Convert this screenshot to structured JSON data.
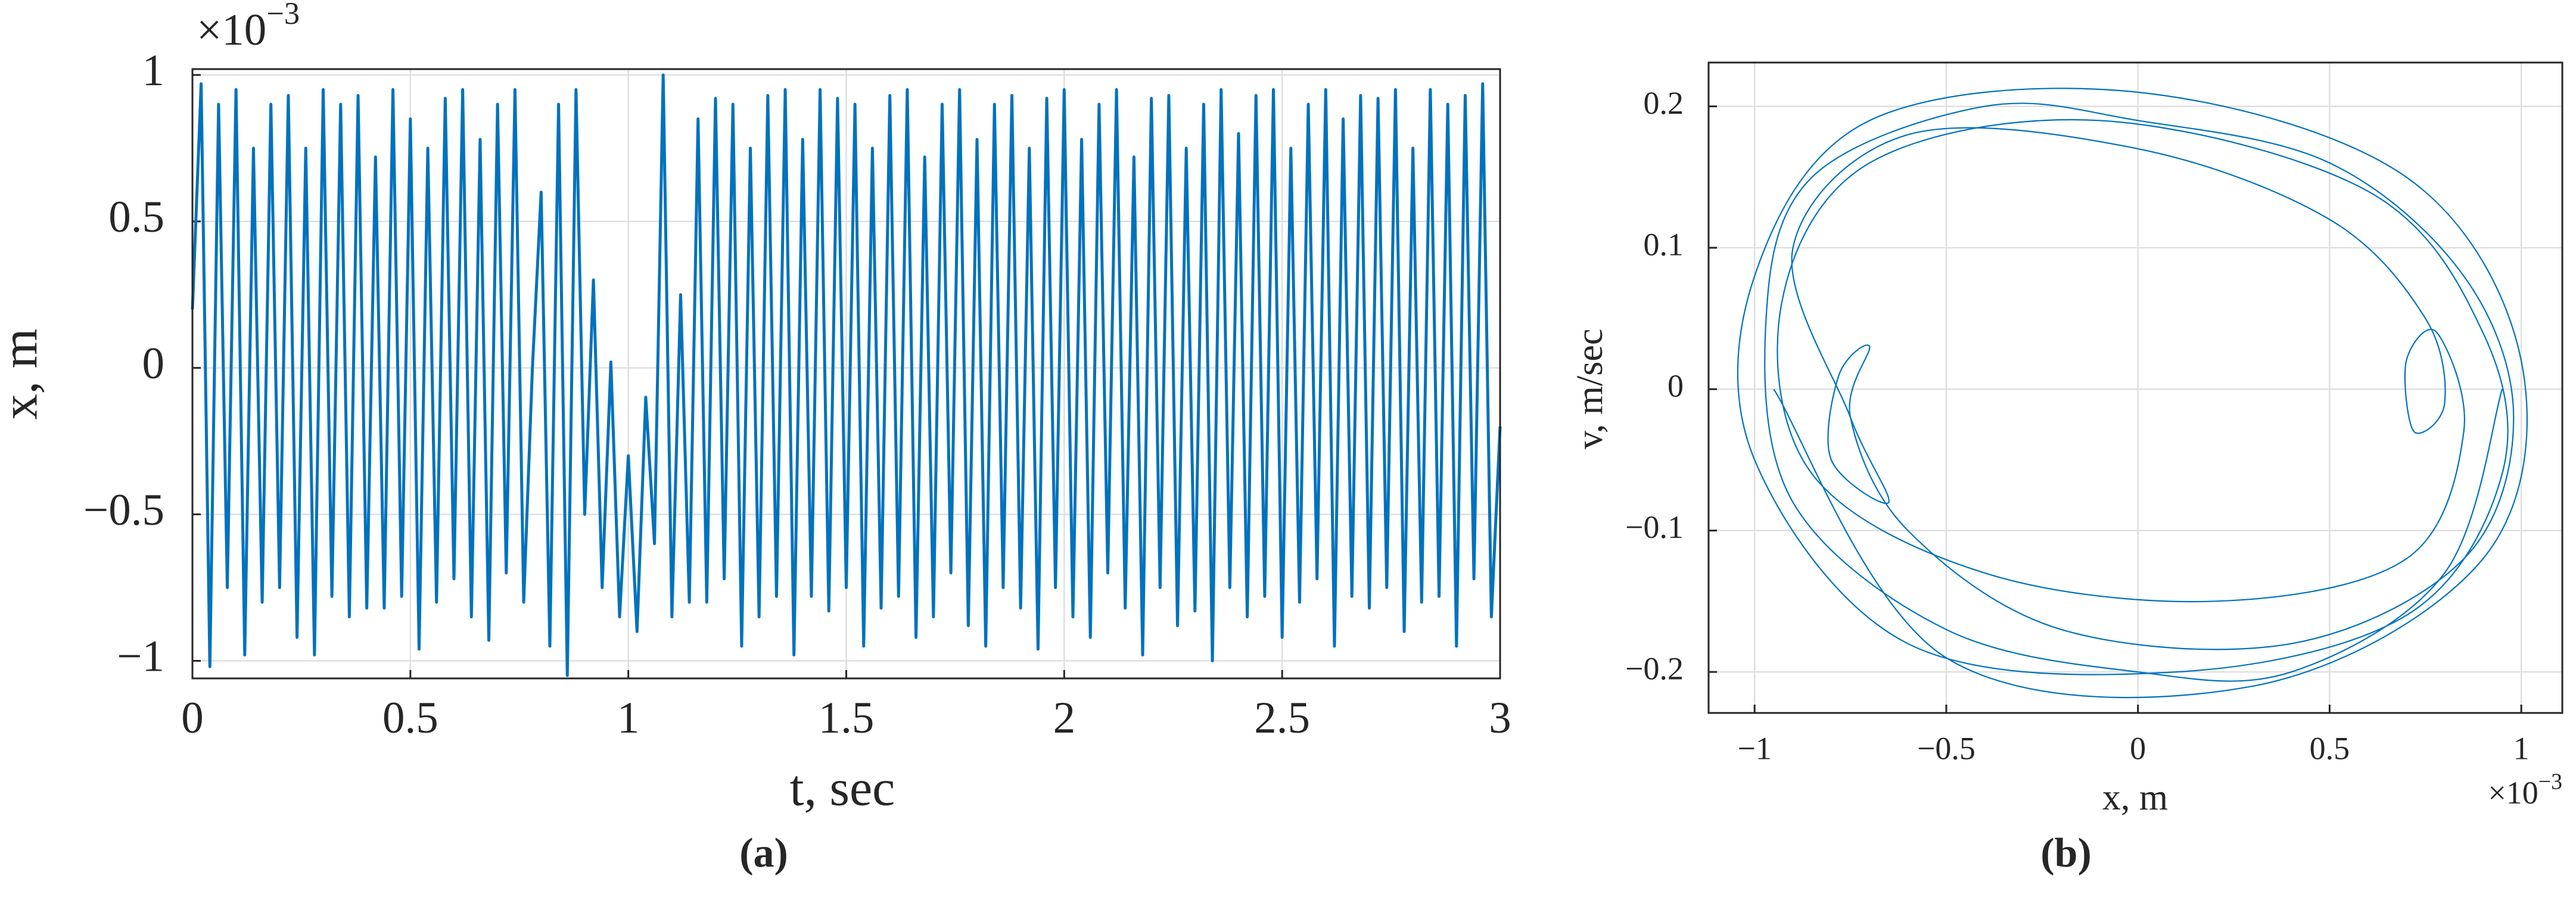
{
  "chart_data": [
    {
      "type": "line",
      "caption": "(a)",
      "ylabel": "x, m",
      "xlabel": "t, sec",
      "y_multiplier": {
        "base": "×10",
        "exponent": "−3"
      },
      "xlim": [
        0,
        3
      ],
      "ylim": [
        -1.06,
        1.02
      ],
      "xticks": [
        0,
        0.5,
        1,
        1.5,
        2,
        2.5,
        3
      ],
      "yticks": [
        {
          "value": -1,
          "label": "−1"
        },
        {
          "value": -0.5,
          "label": "−0.5"
        },
        0,
        0.5,
        1
      ],
      "grid": true,
      "series": [
        {
          "color": "#0072bd",
          "x": [
            0,
            0.02,
            0.04,
            0.06,
            0.08,
            0.1,
            0.12,
            0.14,
            0.16,
            0.18,
            0.2,
            0.22,
            0.24,
            0.26,
            0.28,
            0.3,
            0.32,
            0.34,
            0.36,
            0.38,
            0.4,
            0.42,
            0.44,
            0.46,
            0.48,
            0.5,
            0.52,
            0.54,
            0.56,
            0.58,
            0.6,
            0.62,
            0.64,
            0.66,
            0.68,
            0.7,
            0.72,
            0.74,
            0.76,
            0.78,
            0.8,
            0.82,
            0.84,
            0.86,
            0.88,
            0.9,
            0.92,
            0.94,
            0.96,
            0.98,
            1,
            1.02,
            1.04,
            1.06,
            1.08,
            1.1,
            1.12,
            1.14,
            1.16,
            1.18,
            1.2,
            1.22,
            1.24,
            1.26,
            1.28,
            1.3,
            1.32,
            1.34,
            1.36,
            1.38,
            1.4,
            1.42,
            1.44,
            1.46,
            1.48,
            1.5,
            1.52,
            1.54,
            1.56,
            1.58,
            1.6,
            1.62,
            1.64,
            1.66,
            1.68,
            1.7,
            1.72,
            1.74,
            1.76,
            1.78,
            1.8,
            1.82,
            1.84,
            1.86,
            1.88,
            1.9,
            1.92,
            1.94,
            1.96,
            1.98,
            2,
            2.02,
            2.04,
            2.06,
            2.08,
            2.1,
            2.12,
            2.14,
            2.16,
            2.18,
            2.2,
            2.22,
            2.24,
            2.26,
            2.28,
            2.3,
            2.32,
            2.34,
            2.36,
            2.38,
            2.4,
            2.42,
            2.44,
            2.46,
            2.48,
            2.5,
            2.52,
            2.54,
            2.56,
            2.58,
            2.6,
            2.62,
            2.64,
            2.66,
            2.68,
            2.7,
            2.72,
            2.74,
            2.76,
            2.78,
            2.8,
            2.82,
            2.84,
            2.86,
            2.88,
            2.9,
            2.92,
            2.94,
            2.96,
            2.98,
            3
          ],
          "values": [
            0.2,
            0.97,
            -1.02,
            0.9,
            -0.75,
            0.95,
            -0.98,
            0.75,
            -0.8,
            0.9,
            -0.75,
            0.93,
            -0.92,
            0.75,
            -0.98,
            0.95,
            -0.78,
            0.9,
            -0.85,
            0.93,
            -0.82,
            0.72,
            -0.82,
            0.95,
            -0.78,
            0.85,
            -0.96,
            0.75,
            -0.8,
            0.92,
            -0.72,
            0.95,
            -0.85,
            0.78,
            -0.93,
            0.9,
            -0.7,
            0.95,
            -0.8,
            0.0,
            0.6,
            -0.95,
            0.9,
            -1.05,
            0.95,
            -0.5,
            0.3,
            -0.75,
            0.02,
            -0.85,
            -0.3,
            -0.9,
            -0.1,
            -0.6,
            1.0,
            -0.85,
            0.25,
            -0.8,
            0.85,
            -0.8,
            0.92,
            -0.72,
            0.9,
            -0.95,
            0.75,
            -0.85,
            0.93,
            -0.78,
            0.95,
            -0.98,
            0.78,
            -0.78,
            0.95,
            -0.83,
            0.92,
            -0.75,
            0.9,
            -0.95,
            0.75,
            -0.82,
            0.93,
            -0.78,
            0.95,
            -0.92,
            0.72,
            -0.85,
            0.9,
            -0.7,
            0.95,
            -0.88,
            0.78,
            -0.95,
            0.9,
            -0.75,
            0.93,
            -0.82,
            0.75,
            -0.96,
            0.92,
            -0.75,
            0.95,
            -0.85,
            0.78,
            -0.92,
            0.9,
            -0.7,
            0.95,
            -0.82,
            0.72,
            -0.98,
            0.92,
            -0.75,
            0.93,
            -0.88,
            0.75,
            -0.83,
            0.9,
            -1.0,
            0.95,
            -0.75,
            0.8,
            -0.85,
            0.93,
            -0.78,
            0.95,
            -0.92,
            0.75,
            -0.8,
            0.9,
            -0.72,
            0.95,
            -0.95,
            0.85,
            -0.78,
            0.93,
            -0.82,
            0.92,
            -0.75,
            0.95,
            -0.9,
            0.75,
            -0.8,
            0.95,
            -0.78,
            0.9,
            -0.95,
            0.93,
            -0.72,
            0.97,
            -0.85,
            -0.2
          ]
        }
      ]
    },
    {
      "type": "line",
      "caption": "(b)",
      "ylabel": "v, m/sec",
      "xlabel": "x, m",
      "x_multiplier": {
        "base": "×10",
        "exponent": "−3"
      },
      "xlim": [
        -1.12,
        1.107
      ],
      "ylim": [
        -0.229,
        0.231
      ],
      "xticks": [
        {
          "value": -1,
          "label": "−1"
        },
        {
          "value": -0.5,
          "label": "−0.5"
        },
        0,
        0.5,
        1
      ],
      "yticks": [
        {
          "value": -0.2,
          "label": "−0.2"
        },
        {
          "value": -0.1,
          "label": "−0.1"
        },
        0,
        0.1,
        0.2
      ],
      "grid": true,
      "series": [
        {
          "color": "#0072bd",
          "x": [
            0.95,
            0.8,
            0.4,
            0,
            -0.5,
            -0.9,
            -0.97,
            -0.85,
            -0.4,
            0,
            0.5,
            0.85,
            0.98,
            0.85,
            0.4,
            -0.2,
            -0.6,
            -0.75,
            -0.7,
            -0.78,
            -0.8,
            -0.65,
            -0.75,
            -0.9,
            -0.6,
            0,
            0.5,
            0.75,
            0.8,
            0.72,
            0.7,
            0.78,
            0.85,
            0.7,
            0.2,
            -0.4,
            -0.85,
            -0.93,
            -0.7,
            -0.1,
            0.6,
            0.9,
            0.95,
            0.7,
            0.1,
            -0.6,
            -1.0,
            -1.0,
            -0.7,
            0,
            0.7,
            1.0,
            0.9,
            0.3,
            -0.5,
            -0.95
          ],
          "values": [
            0,
            -0.13,
            -0.2,
            -0.2,
            -0.17,
            -0.08,
            0.05,
            0.15,
            0.2,
            0.19,
            0.16,
            0.08,
            -0.02,
            -0.12,
            -0.18,
            -0.17,
            -0.1,
            -0.02,
            0.03,
            0.01,
            -0.05,
            -0.08,
            -0.02,
            0.1,
            0.18,
            0.17,
            0.12,
            0.05,
            -0.01,
            -0.03,
            0.02,
            0.04,
            -0.03,
            -0.12,
            -0.15,
            -0.13,
            -0.06,
            0.06,
            0.16,
            0.19,
            0.14,
            0.04,
            -0.06,
            -0.16,
            -0.2,
            -0.18,
            -0.05,
            0.08,
            0.19,
            0.21,
            0.15,
            0.02,
            -0.12,
            -0.21,
            -0.19,
            0
          ]
        }
      ]
    }
  ]
}
